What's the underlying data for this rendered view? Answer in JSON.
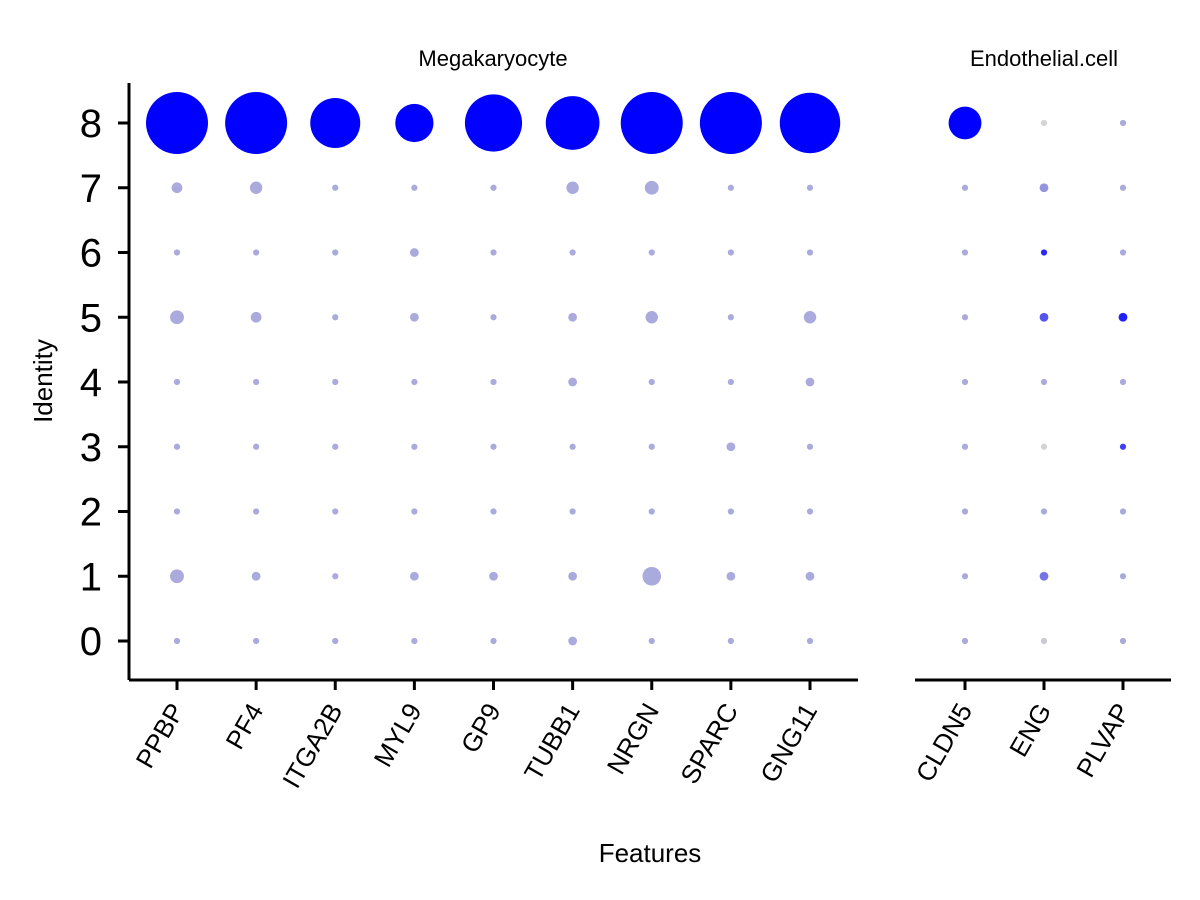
{
  "chart_data": {
    "type": "dot",
    "xlabel": "Features",
    "ylabel": "Identity",
    "y_categories": [
      "0",
      "1",
      "2",
      "3",
      "4",
      "5",
      "6",
      "7",
      "8"
    ],
    "colors": {
      "high": "#0000ff",
      "low": "#d4d4d4"
    },
    "panels": [
      {
        "title": "Megakaryocyte",
        "features": [
          "PPBP",
          "PF4",
          "ITGA2B",
          "MYL9",
          "GP9",
          "TUBB1",
          "NRGN",
          "SPARC",
          "GNG11"
        ],
        "points": [
          {
            "feature": "PPBP",
            "identity": "8",
            "pct": 100,
            "avg": 1.0
          },
          {
            "feature": "PF4",
            "identity": "8",
            "pct": 100,
            "avg": 1.0
          },
          {
            "feature": "ITGA2B",
            "identity": "8",
            "pct": 65,
            "avg": 1.0
          },
          {
            "feature": "MYL9",
            "identity": "8",
            "pct": 38,
            "avg": 1.0
          },
          {
            "feature": "GP9",
            "identity": "8",
            "pct": 85,
            "avg": 1.0
          },
          {
            "feature": "TUBB1",
            "identity": "8",
            "pct": 75,
            "avg": 1.0
          },
          {
            "feature": "NRGN",
            "identity": "8",
            "pct": 100,
            "avg": 1.0
          },
          {
            "feature": "SPARC",
            "identity": "8",
            "pct": 100,
            "avg": 1.0
          },
          {
            "feature": "GNG11",
            "identity": "8",
            "pct": 95,
            "avg": 1.0
          },
          {
            "feature": "PPBP",
            "identity": "7",
            "pct": 3,
            "avg": 0.2
          },
          {
            "feature": "PF4",
            "identity": "7",
            "pct": 4,
            "avg": 0.2
          },
          {
            "feature": "ITGA2B",
            "identity": "7",
            "pct": 1,
            "avg": 0.2
          },
          {
            "feature": "MYL9",
            "identity": "7",
            "pct": 1,
            "avg": 0.2
          },
          {
            "feature": "GP9",
            "identity": "7",
            "pct": 1,
            "avg": 0.2
          },
          {
            "feature": "TUBB1",
            "identity": "7",
            "pct": 4,
            "avg": 0.2
          },
          {
            "feature": "NRGN",
            "identity": "7",
            "pct": 5,
            "avg": 0.2
          },
          {
            "feature": "SPARC",
            "identity": "7",
            "pct": 1,
            "avg": 0.2
          },
          {
            "feature": "GNG11",
            "identity": "7",
            "pct": 1,
            "avg": 0.2
          },
          {
            "feature": "PPBP",
            "identity": "6",
            "pct": 1,
            "avg": 0.2
          },
          {
            "feature": "PF4",
            "identity": "6",
            "pct": 1,
            "avg": 0.2
          },
          {
            "feature": "ITGA2B",
            "identity": "6",
            "pct": 1,
            "avg": 0.2
          },
          {
            "feature": "MYL9",
            "identity": "6",
            "pct": 2,
            "avg": 0.2
          },
          {
            "feature": "GP9",
            "identity": "6",
            "pct": 1,
            "avg": 0.2
          },
          {
            "feature": "TUBB1",
            "identity": "6",
            "pct": 1,
            "avg": 0.2
          },
          {
            "feature": "NRGN",
            "identity": "6",
            "pct": 1,
            "avg": 0.2
          },
          {
            "feature": "SPARC",
            "identity": "6",
            "pct": 1,
            "avg": 0.2
          },
          {
            "feature": "GNG11",
            "identity": "6",
            "pct": 1,
            "avg": 0.2
          },
          {
            "feature": "PPBP",
            "identity": "5",
            "pct": 5,
            "avg": 0.2
          },
          {
            "feature": "PF4",
            "identity": "5",
            "pct": 3,
            "avg": 0.2
          },
          {
            "feature": "ITGA2B",
            "identity": "5",
            "pct": 1,
            "avg": 0.2
          },
          {
            "feature": "MYL9",
            "identity": "5",
            "pct": 2,
            "avg": 0.2
          },
          {
            "feature": "GP9",
            "identity": "5",
            "pct": 1,
            "avg": 0.2
          },
          {
            "feature": "TUBB1",
            "identity": "5",
            "pct": 2,
            "avg": 0.2
          },
          {
            "feature": "NRGN",
            "identity": "5",
            "pct": 4,
            "avg": 0.2
          },
          {
            "feature": "SPARC",
            "identity": "5",
            "pct": 1,
            "avg": 0.2
          },
          {
            "feature": "GNG11",
            "identity": "5",
            "pct": 4,
            "avg": 0.2
          },
          {
            "feature": "PPBP",
            "identity": "4",
            "pct": 1,
            "avg": 0.2
          },
          {
            "feature": "PF4",
            "identity": "4",
            "pct": 1,
            "avg": 0.2
          },
          {
            "feature": "ITGA2B",
            "identity": "4",
            "pct": 1,
            "avg": 0.2
          },
          {
            "feature": "MYL9",
            "identity": "4",
            "pct": 1,
            "avg": 0.2
          },
          {
            "feature": "GP9",
            "identity": "4",
            "pct": 1,
            "avg": 0.2
          },
          {
            "feature": "TUBB1",
            "identity": "4",
            "pct": 2,
            "avg": 0.2
          },
          {
            "feature": "NRGN",
            "identity": "4",
            "pct": 1,
            "avg": 0.2
          },
          {
            "feature": "SPARC",
            "identity": "4",
            "pct": 1,
            "avg": 0.2
          },
          {
            "feature": "GNG11",
            "identity": "4",
            "pct": 2,
            "avg": 0.2
          },
          {
            "feature": "PPBP",
            "identity": "3",
            "pct": 1,
            "avg": 0.2
          },
          {
            "feature": "PF4",
            "identity": "3",
            "pct": 1,
            "avg": 0.2
          },
          {
            "feature": "ITGA2B",
            "identity": "3",
            "pct": 1,
            "avg": 0.2
          },
          {
            "feature": "MYL9",
            "identity": "3",
            "pct": 1,
            "avg": 0.2
          },
          {
            "feature": "GP9",
            "identity": "3",
            "pct": 1,
            "avg": 0.2
          },
          {
            "feature": "TUBB1",
            "identity": "3",
            "pct": 1,
            "avg": 0.2
          },
          {
            "feature": "NRGN",
            "identity": "3",
            "pct": 1,
            "avg": 0.2
          },
          {
            "feature": "SPARC",
            "identity": "3",
            "pct": 2,
            "avg": 0.2
          },
          {
            "feature": "GNG11",
            "identity": "3",
            "pct": 1,
            "avg": 0.2
          },
          {
            "feature": "PPBP",
            "identity": "2",
            "pct": 1,
            "avg": 0.2
          },
          {
            "feature": "PF4",
            "identity": "2",
            "pct": 1,
            "avg": 0.2
          },
          {
            "feature": "ITGA2B",
            "identity": "2",
            "pct": 1,
            "avg": 0.2
          },
          {
            "feature": "MYL9",
            "identity": "2",
            "pct": 1,
            "avg": 0.2
          },
          {
            "feature": "GP9",
            "identity": "2",
            "pct": 1,
            "avg": 0.2
          },
          {
            "feature": "TUBB1",
            "identity": "2",
            "pct": 1,
            "avg": 0.2
          },
          {
            "feature": "NRGN",
            "identity": "2",
            "pct": 1,
            "avg": 0.2
          },
          {
            "feature": "SPARC",
            "identity": "2",
            "pct": 1,
            "avg": 0.2
          },
          {
            "feature": "GNG11",
            "identity": "2",
            "pct": 1,
            "avg": 0.2
          },
          {
            "feature": "PPBP",
            "identity": "1",
            "pct": 5,
            "avg": 0.2
          },
          {
            "feature": "PF4",
            "identity": "1",
            "pct": 2,
            "avg": 0.2
          },
          {
            "feature": "ITGA2B",
            "identity": "1",
            "pct": 1,
            "avg": 0.2
          },
          {
            "feature": "MYL9",
            "identity": "1",
            "pct": 2,
            "avg": 0.2
          },
          {
            "feature": "GP9",
            "identity": "1",
            "pct": 2,
            "avg": 0.2
          },
          {
            "feature": "TUBB1",
            "identity": "1",
            "pct": 2,
            "avg": 0.2
          },
          {
            "feature": "NRGN",
            "identity": "1",
            "pct": 9,
            "avg": 0.2
          },
          {
            "feature": "SPARC",
            "identity": "1",
            "pct": 2,
            "avg": 0.2
          },
          {
            "feature": "GNG11",
            "identity": "1",
            "pct": 2,
            "avg": 0.2
          },
          {
            "feature": "PPBP",
            "identity": "0",
            "pct": 1,
            "avg": 0.2
          },
          {
            "feature": "PF4",
            "identity": "0",
            "pct": 1,
            "avg": 0.2
          },
          {
            "feature": "ITGA2B",
            "identity": "0",
            "pct": 1,
            "avg": 0.2
          },
          {
            "feature": "MYL9",
            "identity": "0",
            "pct": 1,
            "avg": 0.2
          },
          {
            "feature": "GP9",
            "identity": "0",
            "pct": 1,
            "avg": 0.2
          },
          {
            "feature": "TUBB1",
            "identity": "0",
            "pct": 2,
            "avg": 0.2
          },
          {
            "feature": "NRGN",
            "identity": "0",
            "pct": 1,
            "avg": 0.2
          },
          {
            "feature": "SPARC",
            "identity": "0",
            "pct": 1,
            "avg": 0.2
          },
          {
            "feature": "GNG11",
            "identity": "0",
            "pct": 1,
            "avg": 0.2
          }
        ]
      },
      {
        "title": "Endothelial.cell",
        "features": [
          "CLDN5",
          "ENG",
          "PLVAP"
        ],
        "points": [
          {
            "feature": "CLDN5",
            "identity": "8",
            "pct": 28,
            "avg": 1.0
          },
          {
            "feature": "ENG",
            "identity": "8",
            "pct": 1,
            "avg": 0.0
          },
          {
            "feature": "PLVAP",
            "identity": "8",
            "pct": 1,
            "avg": 0.2
          },
          {
            "feature": "CLDN5",
            "identity": "7",
            "pct": 1,
            "avg": 0.2
          },
          {
            "feature": "ENG",
            "identity": "7",
            "pct": 2,
            "avg": 0.3
          },
          {
            "feature": "PLVAP",
            "identity": "7",
            "pct": 1,
            "avg": 0.2
          },
          {
            "feature": "CLDN5",
            "identity": "6",
            "pct": 1,
            "avg": 0.2
          },
          {
            "feature": "ENG",
            "identity": "6",
            "pct": 1,
            "avg": 0.8
          },
          {
            "feature": "PLVAP",
            "identity": "6",
            "pct": 1,
            "avg": 0.2
          },
          {
            "feature": "CLDN5",
            "identity": "5",
            "pct": 1,
            "avg": 0.2
          },
          {
            "feature": "ENG",
            "identity": "5",
            "pct": 2,
            "avg": 0.6
          },
          {
            "feature": "PLVAP",
            "identity": "5",
            "pct": 2,
            "avg": 0.85
          },
          {
            "feature": "CLDN5",
            "identity": "4",
            "pct": 1,
            "avg": 0.2
          },
          {
            "feature": "ENG",
            "identity": "4",
            "pct": 1,
            "avg": 0.2
          },
          {
            "feature": "PLVAP",
            "identity": "4",
            "pct": 1,
            "avg": 0.2
          },
          {
            "feature": "CLDN5",
            "identity": "3",
            "pct": 1,
            "avg": 0.2
          },
          {
            "feature": "ENG",
            "identity": "3",
            "pct": 1,
            "avg": 0.0
          },
          {
            "feature": "PLVAP",
            "identity": "3",
            "pct": 1,
            "avg": 0.7
          },
          {
            "feature": "CLDN5",
            "identity": "2",
            "pct": 1,
            "avg": 0.2
          },
          {
            "feature": "ENG",
            "identity": "2",
            "pct": 1,
            "avg": 0.2
          },
          {
            "feature": "PLVAP",
            "identity": "2",
            "pct": 1,
            "avg": 0.2
          },
          {
            "feature": "CLDN5",
            "identity": "1",
            "pct": 1,
            "avg": 0.2
          },
          {
            "feature": "ENG",
            "identity": "1",
            "pct": 2,
            "avg": 0.45
          },
          {
            "feature": "PLVAP",
            "identity": "1",
            "pct": 1,
            "avg": 0.2
          },
          {
            "feature": "CLDN5",
            "identity": "0",
            "pct": 1,
            "avg": 0.2
          },
          {
            "feature": "ENG",
            "identity": "0",
            "pct": 1,
            "avg": 0.05
          },
          {
            "feature": "PLVAP",
            "identity": "0",
            "pct": 1,
            "avg": 0.2
          }
        ]
      }
    ]
  }
}
